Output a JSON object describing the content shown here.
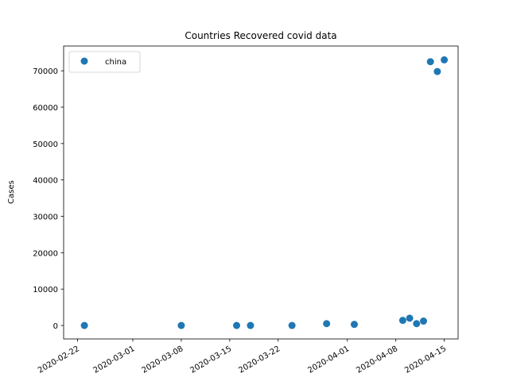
{
  "chart_data": {
    "type": "scatter",
    "title": "Countries Recovered covid data",
    "xlabel": "",
    "ylabel": "Cases",
    "xlim": [
      "2020-02-20",
      "2020-04-17"
    ],
    "ylim": [
      -3700,
      76800
    ],
    "x_ticks": [
      "2020-02-22",
      "2020-03-01",
      "2020-03-08",
      "2020-03-15",
      "2020-03-22",
      "2020-04-01",
      "2020-04-08",
      "2020-04-15"
    ],
    "y_ticks": [
      0,
      10000,
      20000,
      30000,
      40000,
      50000,
      60000,
      70000
    ],
    "grid": false,
    "legend_position": "upper-left",
    "series": [
      {
        "name": "china",
        "color": "#1f77b4",
        "points": [
          {
            "x": "2020-02-23",
            "y": 0
          },
          {
            "x": "2020-03-08",
            "y": 0
          },
          {
            "x": "2020-03-16",
            "y": 0
          },
          {
            "x": "2020-03-18",
            "y": 0
          },
          {
            "x": "2020-03-24",
            "y": 0
          },
          {
            "x": "2020-03-29",
            "y": 500
          },
          {
            "x": "2020-04-02",
            "y": 300
          },
          {
            "x": "2020-04-09",
            "y": 1400
          },
          {
            "x": "2020-04-10",
            "y": 2000
          },
          {
            "x": "2020-04-11",
            "y": 500
          },
          {
            "x": "2020-04-12",
            "y": 1200
          },
          {
            "x": "2020-04-13",
            "y": 72500
          },
          {
            "x": "2020-04-14",
            "y": 69800
          },
          {
            "x": "2020-04-15",
            "y": 73000
          }
        ]
      }
    ]
  }
}
